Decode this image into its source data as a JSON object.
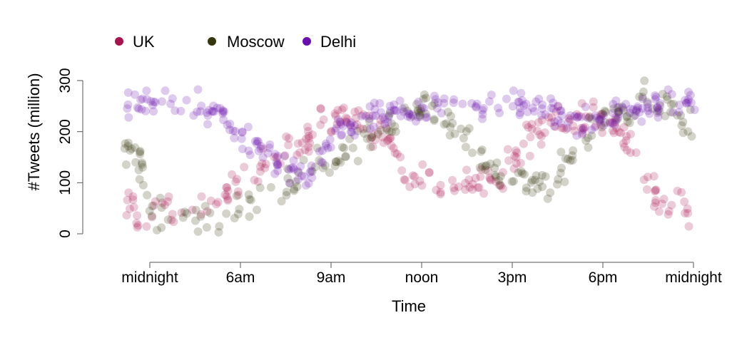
{
  "chart_data": {
    "type": "scatter",
    "title": "",
    "xlabel": "Time",
    "ylabel": "#Tweets (million)",
    "xlim": [
      0,
      24
    ],
    "ylim": [
      -55,
      315
    ],
    "x_ticks": [
      {
        "value": 0,
        "label": "midnight"
      },
      {
        "value": 4,
        "label": "6am"
      },
      {
        "value": 8,
        "label": "9am"
      },
      {
        "value": 12,
        "label": "noon"
      },
      {
        "value": 16,
        "label": "3pm"
      },
      {
        "value": 20,
        "label": "6pm"
      },
      {
        "value": 24,
        "label": "midnight"
      }
    ],
    "y_ticks": [
      {
        "value": 0,
        "label": "0"
      },
      {
        "value": 100,
        "label": "100"
      },
      {
        "value": 200,
        "label": "200"
      },
      {
        "value": 300,
        "label": "300"
      }
    ],
    "legend_position": "top-left",
    "series": [
      {
        "name": "UK",
        "color": "#a8134e",
        "trend": [
          [
            -1.2,
            50
          ],
          [
            0,
            40
          ],
          [
            2,
            45
          ],
          [
            3.5,
            90
          ],
          [
            5,
            130
          ],
          [
            6.5,
            165
          ],
          [
            7.5,
            210
          ],
          [
            8.5,
            240
          ],
          [
            9.5,
            220
          ],
          [
            10.5,
            190
          ],
          [
            11.5,
            110
          ],
          [
            13,
            90
          ],
          [
            14.5,
            95
          ],
          [
            15.5,
            100
          ],
          [
            16.5,
            180
          ],
          [
            17.5,
            210
          ],
          [
            18.5,
            220
          ],
          [
            19.5,
            230
          ],
          [
            20.5,
            200
          ],
          [
            21.5,
            150
          ],
          [
            22.5,
            50
          ],
          [
            24,
            45
          ]
        ],
        "spread": 28,
        "points_per_segment": 12
      },
      {
        "name": "Moscow",
        "color": "#35370d",
        "trend": [
          [
            -1.2,
            180
          ],
          [
            -0.5,
            150
          ],
          [
            0,
            40
          ],
          [
            2,
            30
          ],
          [
            3.5,
            50
          ],
          [
            5,
            70
          ],
          [
            6.5,
            110
          ],
          [
            8,
            150
          ],
          [
            9,
            180
          ],
          [
            10,
            200
          ],
          [
            11,
            230
          ],
          [
            12,
            250
          ],
          [
            13,
            230
          ],
          [
            14,
            190
          ],
          [
            15,
            130
          ],
          [
            16,
            110
          ],
          [
            17,
            90
          ],
          [
            18,
            100
          ],
          [
            19,
            180
          ],
          [
            20,
            220
          ],
          [
            21,
            240
          ],
          [
            22,
            260
          ],
          [
            23,
            240
          ],
          [
            24,
            200
          ]
        ],
        "spread": 30,
        "points_per_segment": 10
      },
      {
        "name": "Delhi",
        "color": "#6a0fae",
        "trend": [
          [
            -1.2,
            260
          ],
          [
            0,
            255
          ],
          [
            2,
            250
          ],
          [
            3,
            240
          ],
          [
            4,
            190
          ],
          [
            5,
            160
          ],
          [
            6,
            130
          ],
          [
            7,
            110
          ],
          [
            8,
            190
          ],
          [
            9,
            220
          ],
          [
            10,
            230
          ],
          [
            11,
            240
          ],
          [
            12,
            245
          ],
          [
            14,
            250
          ],
          [
            16,
            250
          ],
          [
            17,
            240
          ],
          [
            18,
            230
          ],
          [
            19,
            220
          ],
          [
            20,
            220
          ],
          [
            21,
            240
          ],
          [
            22,
            250
          ],
          [
            23,
            255
          ],
          [
            24,
            255
          ]
        ],
        "spread": 22,
        "points_per_segment": 13
      }
    ]
  }
}
